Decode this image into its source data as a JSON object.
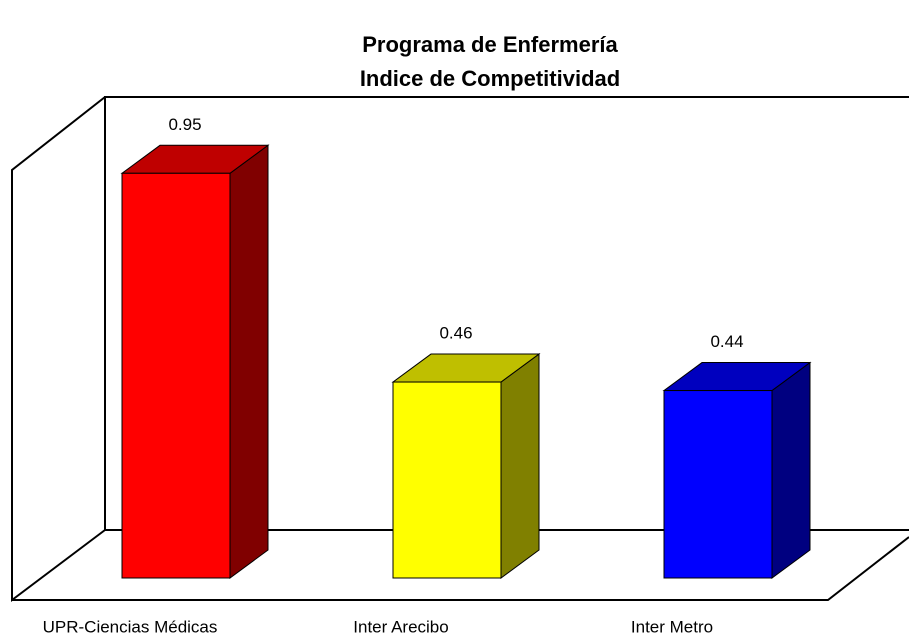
{
  "chart_data": {
    "type": "bar3d",
    "title": "Programa de Enfermería",
    "subtitle": "Indice de Competitividad",
    "categories": [
      "UPR-Ciencias Médicas",
      "Inter Arecibo",
      "Inter Metro"
    ],
    "values": [
      0.95,
      0.46,
      0.44
    ],
    "colors": [
      "#ff0000",
      "#ffff00",
      "#0000ff"
    ]
  }
}
